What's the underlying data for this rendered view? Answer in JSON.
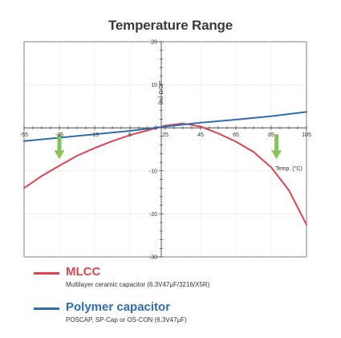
{
  "chart_data": {
    "type": "line",
    "title": "Temperature Range",
    "xlabel": "Temp. (°C)",
    "ylabel": "⊿C/C (%)",
    "xlim": [
      -55,
      105
    ],
    "ylim": [
      -30,
      20
    ],
    "x_ticks": [
      -55,
      -35,
      -15,
      5,
      25,
      45,
      65,
      85,
      105
    ],
    "y_ticks": [
      20,
      10,
      0,
      -10,
      -20,
      -30
    ],
    "grid": true,
    "series": [
      {
        "name": "MLCC",
        "description": "Multilayer ceramic capacitor (6.3V47μF/3216/X5R)",
        "color": "#e0434f",
        "x": [
          -55,
          -45,
          -35,
          -25,
          -15,
          -5,
          5,
          15,
          25,
          35,
          45,
          55,
          65,
          75,
          85,
          95,
          105
        ],
        "y": [
          -14,
          -11.2,
          -8.8,
          -6.5,
          -4.7,
          -3.1,
          -1.7,
          -0.6,
          0.5,
          1.0,
          0.3,
          -1.3,
          -3.2,
          -5.6,
          -9.2,
          -14.5,
          -22.5
        ]
      },
      {
        "name": "Polymer capacitor",
        "description": "POSCAP, SP-Cap or OS-CON (6.3V47μF)",
        "color": "#2e6db0",
        "x": [
          -55,
          -35,
          -15,
          5,
          25,
          45,
          65,
          85,
          105
        ],
        "y": [
          -3.1,
          -2.3,
          -1.5,
          -0.7,
          0.3,
          1.2,
          1.9,
          2.7,
          3.7
        ]
      }
    ],
    "arrows": [
      {
        "x": -35,
        "color": "#86c45a"
      },
      {
        "x": 88,
        "color": "#86c45a"
      }
    ]
  }
}
